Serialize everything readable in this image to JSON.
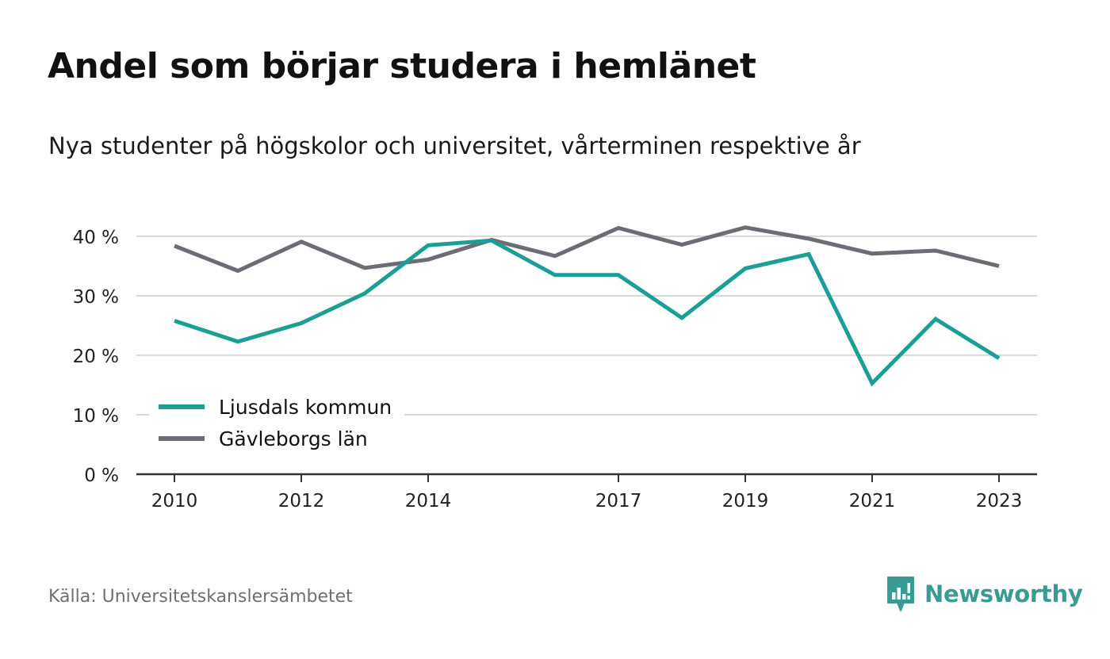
{
  "header": {
    "title": "Andel som börjar studera i hemlänet",
    "subtitle": "Nya studenter på högskolor och universitet, vårterminen respektive år"
  },
  "footer": {
    "source": "Källa: Universitetskanslersämbetet",
    "brand_name": "Newsworthy",
    "brand_icon": "bar-chart-speech-bubble-icon"
  },
  "colors": {
    "ljusdal": "#1a9e96",
    "gavleborg": "#6c6c74",
    "grid": "#d9d9d9",
    "axis": "#333333",
    "brand": "#3a9a94"
  },
  "chart_data": {
    "type": "line",
    "title": "Andel som börjar studera i hemlänet",
    "subtitle": "Nya studenter på högskolor och universitet, vårterminen respektive år",
    "xlabel": "",
    "ylabel": "",
    "x": [
      2010,
      2011,
      2012,
      2013,
      2014,
      2015,
      2016,
      2017,
      2018,
      2019,
      2020,
      2021,
      2022,
      2023
    ],
    "x_ticks": [
      "2010",
      "2012",
      "2014",
      "2017",
      "2019",
      "2021",
      "2023"
    ],
    "y_ticks": [
      "0 %",
      "10 %",
      "20 %",
      "30 %",
      "40 %"
    ],
    "y_tick_values": [
      0,
      10,
      20,
      30,
      40
    ],
    "xlim": [
      2009.4,
      2023.6
    ],
    "ylim": [
      0,
      42
    ],
    "grid": true,
    "legend_position": "bottom-left",
    "series": [
      {
        "name": "Ljusdals kommun",
        "color": "#1a9e96",
        "values": [
          25.8,
          22.3,
          25.4,
          30.4,
          38.5,
          39.3,
          33.5,
          33.5,
          26.3,
          34.6,
          37.0,
          15.3,
          26.1,
          19.5
        ]
      },
      {
        "name": "Gävleborgs län",
        "color": "#6c6c74",
        "values": [
          38.4,
          34.2,
          39.1,
          34.7,
          36.1,
          39.4,
          36.7,
          41.4,
          38.6,
          41.5,
          39.6,
          37.1,
          37.6,
          35.0
        ]
      }
    ]
  }
}
